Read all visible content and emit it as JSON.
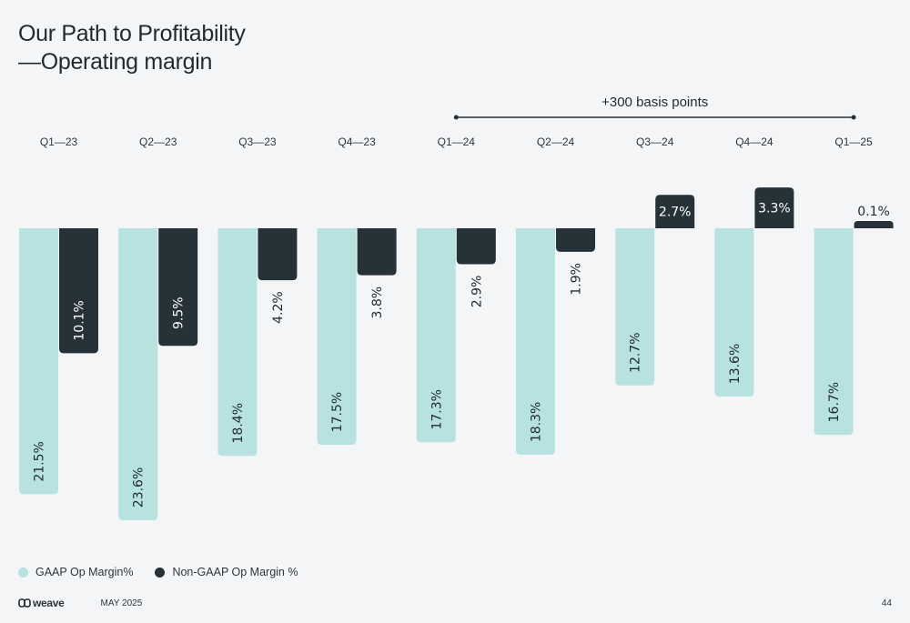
{
  "title": {
    "line1": "Our Path to Profitability",
    "line2": "—Operating margin"
  },
  "annotation": {
    "text": "+300 basis points",
    "from_category": "Q1—24",
    "to_category": "Q1—25"
  },
  "chart_data": {
    "type": "bar",
    "categories": [
      "Q1—23",
      "Q2—23",
      "Q3—23",
      "Q4—23",
      "Q1—24",
      "Q2—24",
      "Q3—24",
      "Q4—24",
      "Q1—25"
    ],
    "series": [
      {
        "name": "GAAP Op Margin%",
        "color": "#b8e2e0",
        "values": [
          -21.5,
          -23.6,
          -18.4,
          -17.5,
          -17.3,
          -18.3,
          -12.7,
          -13.6,
          -16.7
        ],
        "labels": [
          "21.5%",
          "23.6%",
          "18.4%",
          "17.5%",
          "17.3%",
          "18.3%",
          "12.7%",
          "13.6%",
          "16.7%"
        ]
      },
      {
        "name": "Non-GAAP Op Margin %",
        "color": "#263238",
        "values": [
          -10.1,
          -9.5,
          -4.2,
          -3.8,
          -2.9,
          -1.9,
          2.7,
          3.3,
          0.1
        ],
        "labels": [
          "10.1%",
          "9.5%",
          "4.2%",
          "3.8%",
          "2.9%",
          "1.9%",
          "2.7%",
          "3.3%",
          "0.1%"
        ]
      }
    ],
    "legend_position": "bottom-left",
    "grid": false
  },
  "legend": {
    "gaap_label": "GAAP Op Margin%",
    "nongaap_label": "Non-GAAP Op Margin %",
    "gaap_color": "#b8e2e0",
    "nongaap_color": "#263238"
  },
  "footer": {
    "logo_text": "weave",
    "date": "MAY 2025",
    "page_number": "44"
  }
}
